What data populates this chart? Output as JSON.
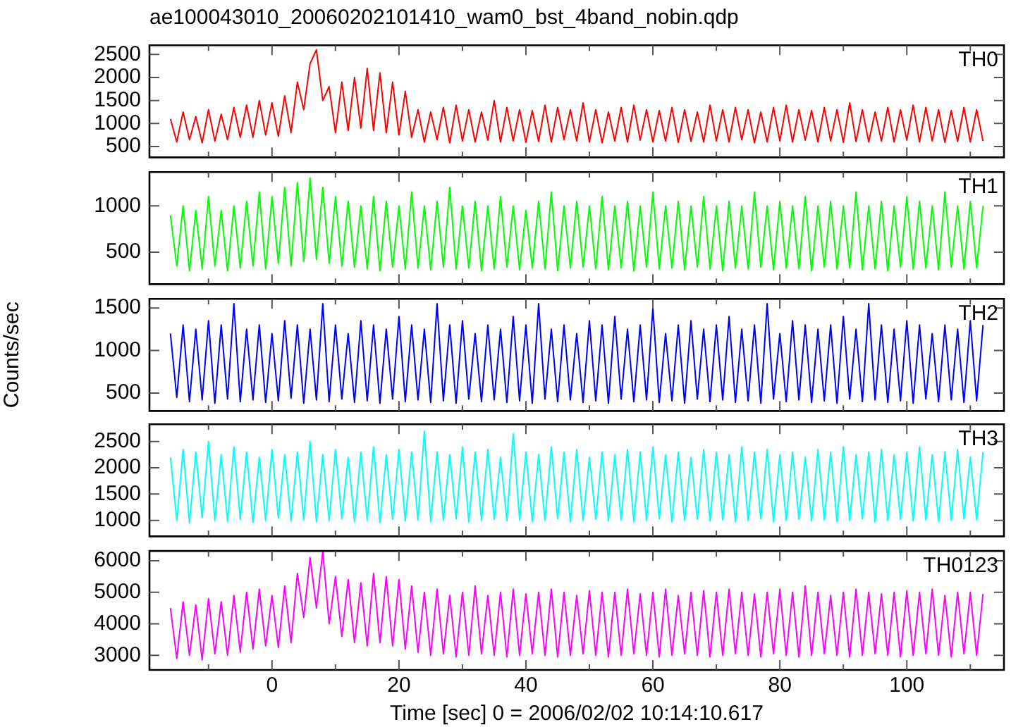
{
  "chart_data": [
    {
      "type": "line",
      "title": "ae100043010_20060202101410_wam0_bst_4band_nobin.qdp",
      "tick_labels": "y",
      "legend": false,
      "grid": false,
      "xlim": [
        -19.3,
        115.3
      ],
      "xticks": [
        {
          "value": -10,
          "label": null
        },
        0,
        {
          "value": 10,
          "label": null
        },
        20,
        {
          "value": 30,
          "label": null
        },
        40,
        {
          "value": 50,
          "label": null
        },
        60,
        {
          "value": 70,
          "label": null
        },
        80,
        {
          "value": 90,
          "label": null
        },
        100,
        {
          "value": 110,
          "label": null
        }
      ],
      "ylim": [
        265,
        2700
      ],
      "yticks": [
        500,
        1000,
        1500,
        2000,
        2500
      ],
      "x": [
        -16,
        -15,
        -14,
        -13,
        -12,
        -11,
        -10,
        -9,
        -8,
        -7,
        -6,
        -5,
        -4,
        -3,
        -2,
        -1,
        0,
        1,
        2,
        3,
        4,
        5,
        6,
        7,
        8,
        9,
        10,
        11,
        12,
        13,
        14,
        15,
        16,
        17,
        18,
        19,
        20,
        21,
        22,
        23,
        24,
        25,
        26,
        27,
        28,
        29,
        30,
        31,
        32,
        33,
        34,
        35,
        36,
        37,
        38,
        39,
        40,
        41,
        42,
        43,
        44,
        45,
        46,
        47,
        48,
        49,
        50,
        51,
        52,
        53,
        54,
        55,
        56,
        57,
        58,
        59,
        60,
        61,
        62,
        63,
        64,
        65,
        66,
        67,
        68,
        69,
        70,
        71,
        72,
        73,
        74,
        75,
        76,
        77,
        78,
        79,
        80,
        81,
        82,
        83,
        84,
        85,
        86,
        87,
        88,
        89,
        90,
        91,
        92,
        93,
        94,
        95,
        96,
        97,
        98,
        99,
        100,
        101,
        102,
        103,
        104,
        105,
        106,
        107,
        108,
        109,
        110,
        111,
        112
      ],
      "series": [
        {
          "name": "TH0",
          "color": "#ff0000",
          "values": [
            1100,
            600,
            1250,
            650,
            1150,
            580,
            1300,
            620,
            1200,
            650,
            1350,
            700,
            1400,
            700,
            1500,
            750,
            1450,
            720,
            1600,
            800,
            1900,
            1300,
            2300,
            2600,
            1500,
            1800,
            800,
            1900,
            850,
            2000,
            900,
            2200,
            850,
            2100,
            800,
            1900,
            750,
            1700,
            700,
            1300,
            600,
            1250,
            650,
            1350,
            580,
            1400,
            620,
            1300,
            600,
            1250,
            640,
            1500,
            600,
            1350,
            620,
            1300,
            590,
            1280,
            610,
            1400,
            600,
            1350,
            650,
            1300,
            620,
            1450,
            600,
            1300,
            580,
            1250,
            620,
            1350,
            600,
            1400,
            640,
            1300,
            600,
            1280,
            620,
            1350,
            590,
            1300,
            610,
            1250,
            600,
            1400,
            620,
            1300,
            600,
            1350,
            650,
            1300,
            580,
            1250,
            600,
            1350,
            620,
            1400,
            600,
            1300,
            640,
            1280,
            600,
            1350,
            620,
            1300,
            590,
            1450,
            610,
            1300,
            600,
            1250,
            620,
            1350,
            600,
            1300,
            640,
            1400,
            600,
            1350,
            620,
            1300,
            590,
            1280,
            610,
            1350,
            600,
            1300,
            620
          ]
        }
      ]
    },
    {
      "type": "line",
      "tick_labels": "y",
      "legend": false,
      "grid": false,
      "xlim": [
        -19.3,
        115.3
      ],
      "xticks": [
        {
          "value": -10,
          "label": null
        },
        0,
        {
          "value": 10,
          "label": null
        },
        20,
        {
          "value": 30,
          "label": null
        },
        40,
        {
          "value": 50,
          "label": null
        },
        60,
        {
          "value": 70,
          "label": null
        },
        80,
        {
          "value": 90,
          "label": null
        },
        100,
        {
          "value": 110,
          "label": null
        }
      ],
      "ylim": [
        155,
        1365
      ],
      "yticks": [
        500,
        1000
      ],
      "x": [
        -16,
        -15,
        -14,
        -13,
        -12,
        -11,
        -10,
        -9,
        -8,
        -7,
        -6,
        -5,
        -4,
        -3,
        -2,
        -1,
        0,
        1,
        2,
        3,
        4,
        5,
        6,
        7,
        8,
        9,
        10,
        11,
        12,
        13,
        14,
        15,
        16,
        17,
        18,
        19,
        20,
        21,
        22,
        23,
        24,
        25,
        26,
        27,
        28,
        29,
        30,
        31,
        32,
        33,
        34,
        35,
        36,
        37,
        38,
        39,
        40,
        41,
        42,
        43,
        44,
        45,
        46,
        47,
        48,
        49,
        50,
        51,
        52,
        53,
        54,
        55,
        56,
        57,
        58,
        59,
        60,
        61,
        62,
        63,
        64,
        65,
        66,
        67,
        68,
        69,
        70,
        71,
        72,
        73,
        74,
        75,
        76,
        77,
        78,
        79,
        80,
        81,
        82,
        83,
        84,
        85,
        86,
        87,
        88,
        89,
        90,
        91,
        92,
        93,
        94,
        95,
        96,
        97,
        98,
        99,
        100,
        101,
        102,
        103,
        104,
        105,
        106,
        107,
        108,
        109,
        110,
        111,
        112
      ],
      "series": [
        {
          "name": "TH1",
          "color": "#00ff00",
          "values": [
            900,
            350,
            1000,
            300,
            950,
            320,
            1100,
            350,
            950,
            300,
            1000,
            330,
            1050,
            350,
            1150,
            320,
            1100,
            380,
            1200,
            350,
            1250,
            400,
            1300,
            420,
            1200,
            380,
            1100,
            350,
            1050,
            340,
            1000,
            320,
            1100,
            300,
            1050,
            340,
            1000,
            320,
            1150,
            330,
            1000,
            310,
            1050,
            340,
            1200,
            320,
            1000,
            330,
            1050,
            300,
            1000,
            320,
            1100,
            340,
            1000,
            310,
            950,
            330,
            1050,
            320,
            1150,
            300,
            1000,
            330,
            1050,
            340,
            1000,
            320,
            1100,
            310,
            1000,
            330,
            1050,
            300,
            1000,
            340,
            1150,
            320,
            1000,
            330,
            1050,
            310,
            1000,
            340,
            1100,
            320,
            1000,
            300,
            1050,
            330,
            1000,
            320,
            1150,
            340,
            1000,
            310,
            1050,
            330,
            1000,
            320,
            1100,
            300,
            1000,
            340,
            1050,
            320,
            1000,
            330,
            1150,
            310,
            1000,
            320,
            1050,
            300,
            1000,
            340,
            1100,
            320,
            1050,
            330,
            1000,
            310,
            1150,
            340,
            1000,
            320,
            1050,
            330,
            1000
          ]
        }
      ]
    },
    {
      "type": "line",
      "ylabel": "Counts/sec",
      "tick_labels": "y",
      "legend": false,
      "grid": false,
      "xlim": [
        -19.3,
        115.3
      ],
      "xticks": [
        {
          "value": -10,
          "label": null
        },
        0,
        {
          "value": 10,
          "label": null
        },
        20,
        {
          "value": 30,
          "label": null
        },
        40,
        {
          "value": 50,
          "label": null
        },
        60,
        {
          "value": 70,
          "label": null
        },
        80,
        {
          "value": 90,
          "label": null
        },
        100,
        {
          "value": 110,
          "label": null
        }
      ],
      "ylim": [
        290,
        1607
      ],
      "yticks": [
        500,
        1000,
        1500
      ],
      "x": [
        -16,
        -15,
        -14,
        -13,
        -12,
        -11,
        -10,
        -9,
        -8,
        -7,
        -6,
        -5,
        -4,
        -3,
        -2,
        -1,
        0,
        1,
        2,
        3,
        4,
        5,
        6,
        7,
        8,
        9,
        10,
        11,
        12,
        13,
        14,
        15,
        16,
        17,
        18,
        19,
        20,
        21,
        22,
        23,
        24,
        25,
        26,
        27,
        28,
        29,
        30,
        31,
        32,
        33,
        34,
        35,
        36,
        37,
        38,
        39,
        40,
        41,
        42,
        43,
        44,
        45,
        46,
        47,
        48,
        49,
        50,
        51,
        52,
        53,
        54,
        55,
        56,
        57,
        58,
        59,
        60,
        61,
        62,
        63,
        64,
        65,
        66,
        67,
        68,
        69,
        70,
        71,
        72,
        73,
        74,
        75,
        76,
        77,
        78,
        79,
        80,
        81,
        82,
        83,
        84,
        85,
        86,
        87,
        88,
        89,
        90,
        91,
        92,
        93,
        94,
        95,
        96,
        97,
        98,
        99,
        100,
        101,
        102,
        103,
        104,
        105,
        106,
        107,
        108,
        109,
        110,
        111,
        112
      ],
      "series": [
        {
          "name": "TH2",
          "color": "#0000ff",
          "values": [
            1200,
            450,
            1300,
            400,
            1250,
            420,
            1350,
            380,
            1300,
            430,
            1550,
            400,
            1250,
            420,
            1300,
            390,
            1200,
            410,
            1350,
            440,
            1300,
            380,
            1250,
            420,
            1550,
            400,
            1300,
            430,
            1200,
            390,
            1350,
            410,
            1300,
            380,
            1250,
            430,
            1400,
            400,
            1300,
            420,
            1250,
            390,
            1550,
            410,
            1300,
            380,
            1350,
            430,
            1200,
            400,
            1300,
            420,
            1250,
            390,
            1400,
            410,
            1300,
            380,
            1550,
            430,
            1250,
            400,
            1300,
            420,
            1200,
            390,
            1350,
            410,
            1300,
            380,
            1400,
            430,
            1250,
            400,
            1300,
            420,
            1500,
            390,
            1200,
            410,
            1300,
            380,
            1350,
            430,
            1250,
            400,
            1300,
            420,
            1400,
            390,
            1250,
            410,
            1300,
            380,
            1550,
            430,
            1200,
            400,
            1350,
            420,
            1300,
            390,
            1250,
            410,
            1300,
            380,
            1400,
            430,
            1250,
            400,
            1550,
            420,
            1300,
            390,
            1250,
            410,
            1350,
            380,
            1300,
            430,
            1200,
            400,
            1300,
            420,
            1250,
            390,
            1350,
            410,
            1300
          ]
        }
      ]
    },
    {
      "type": "line",
      "tick_labels": "y",
      "legend": false,
      "grid": false,
      "xlim": [
        -19.3,
        115.3
      ],
      "xticks": [
        {
          "value": -10,
          "label": null
        },
        0,
        {
          "value": 10,
          "label": null
        },
        20,
        {
          "value": 30,
          "label": null
        },
        40,
        {
          "value": 50,
          "label": null
        },
        60,
        {
          "value": 70,
          "label": null
        },
        80,
        {
          "value": 90,
          "label": null
        },
        100,
        {
          "value": 110,
          "label": null
        }
      ],
      "ylim": [
        695,
        2830
      ],
      "yticks": [
        1000,
        1500,
        2000,
        2500
      ],
      "x": [
        -16,
        -15,
        -14,
        -13,
        -12,
        -11,
        -10,
        -9,
        -8,
        -7,
        -6,
        -5,
        -4,
        -3,
        -2,
        -1,
        0,
        1,
        2,
        3,
        4,
        5,
        6,
        7,
        8,
        9,
        10,
        11,
        12,
        13,
        14,
        15,
        16,
        17,
        18,
        19,
        20,
        21,
        22,
        23,
        24,
        25,
        26,
        27,
        28,
        29,
        30,
        31,
        32,
        33,
        34,
        35,
        36,
        37,
        38,
        39,
        40,
        41,
        42,
        43,
        44,
        45,
        46,
        47,
        48,
        49,
        50,
        51,
        52,
        53,
        54,
        55,
        56,
        57,
        58,
        59,
        60,
        61,
        62,
        63,
        64,
        65,
        66,
        67,
        68,
        69,
        70,
        71,
        72,
        73,
        74,
        75,
        76,
        77,
        78,
        79,
        80,
        81,
        82,
        83,
        84,
        85,
        86,
        87,
        88,
        89,
        90,
        91,
        92,
        93,
        94,
        95,
        96,
        97,
        98,
        99,
        100,
        101,
        102,
        103,
        104,
        105,
        106,
        107,
        108,
        109,
        110,
        111,
        112
      ],
      "series": [
        {
          "name": "TH3",
          "color": "#00ffff",
          "values": [
            2200,
            1000,
            2350,
            950,
            2300,
            1050,
            2500,
            1000,
            2250,
            980,
            2400,
            1020,
            2300,
            960,
            2200,
            1000,
            2350,
            1040,
            2250,
            990,
            2300,
            1010,
            2500,
            970,
            2250,
            1000,
            2350,
            1030,
            2200,
            980,
            2300,
            1000,
            2400,
            960,
            2250,
            1020,
            2350,
            990,
            2300,
            1010,
            2700,
            980,
            2300,
            1000,
            2250,
            1030,
            2400,
            970,
            2300,
            1000,
            2350,
            1020,
            2200,
            990,
            2650,
            1010,
            2300,
            980,
            2250,
            1000,
            2400,
            1030,
            2300,
            970,
            2350,
            1000,
            2200,
            1020,
            2300,
            990,
            2250,
            1010,
            2350,
            980,
            2300,
            1000,
            2400,
            1030,
            2250,
            970,
            2300,
            1000,
            2200,
            1020,
            2350,
            990,
            2300,
            1010,
            2250,
            980,
            2400,
            1000,
            2300,
            1030,
            2350,
            970,
            2250,
            1000,
            2300,
            1020,
            2200,
            990,
            2350,
            1010,
            2300,
            980,
            2400,
            1000,
            2250,
            1030,
            2300,
            970,
            2350,
            1000,
            2250,
            1020,
            2300,
            990,
            2400,
            1010,
            2250,
            980,
            2300,
            1000,
            2350,
            1030,
            2200,
            1010,
            2300
          ]
        }
      ]
    },
    {
      "type": "line",
      "xlabel": "Time [sec] 0 = 2006/02/02 10:14:10.617",
      "legend": false,
      "grid": false,
      "xlim": [
        -19.3,
        115.3
      ],
      "xticks": [
        {
          "value": -10,
          "label": null
        },
        0,
        {
          "value": 10,
          "label": null
        },
        20,
        {
          "value": 30,
          "label": null
        },
        40,
        {
          "value": 50,
          "label": null
        },
        60,
        {
          "value": 70,
          "label": null
        },
        80,
        {
          "value": 90,
          "label": null
        },
        100,
        {
          "value": 110,
          "label": null
        }
      ],
      "ylim": [
        2535,
        6310
      ],
      "yticks": [
        3000,
        4000,
        5000,
        6000
      ],
      "x": [
        -16,
        -15,
        -14,
        -13,
        -12,
        -11,
        -10,
        -9,
        -8,
        -7,
        -6,
        -5,
        -4,
        -3,
        -2,
        -1,
        0,
        1,
        2,
        3,
        4,
        5,
        6,
        7,
        8,
        9,
        10,
        11,
        12,
        13,
        14,
        15,
        16,
        17,
        18,
        19,
        20,
        21,
        22,
        23,
        24,
        25,
        26,
        27,
        28,
        29,
        30,
        31,
        32,
        33,
        34,
        35,
        36,
        37,
        38,
        39,
        40,
        41,
        42,
        43,
        44,
        45,
        46,
        47,
        48,
        49,
        50,
        51,
        52,
        53,
        54,
        55,
        56,
        57,
        58,
        59,
        60,
        61,
        62,
        63,
        64,
        65,
        66,
        67,
        68,
        69,
        70,
        71,
        72,
        73,
        74,
        75,
        76,
        77,
        78,
        79,
        80,
        81,
        82,
        83,
        84,
        85,
        86,
        87,
        88,
        89,
        90,
        91,
        92,
        93,
        94,
        95,
        96,
        97,
        98,
        99,
        100,
        101,
        102,
        103,
        104,
        105,
        106,
        107,
        108,
        109,
        110,
        111,
        112
      ],
      "series": [
        {
          "name": "TH0123",
          "color": "#ff00ff",
          "values": [
            4500,
            2900,
            4700,
            3000,
            4600,
            2850,
            4800,
            3050,
            4700,
            3000,
            4900,
            3100,
            5000,
            3200,
            5100,
            3300,
            4900,
            3250,
            5200,
            3400,
            5600,
            4200,
            6100,
            4500,
            6300,
            4000,
            5500,
            3600,
            5400,
            3400,
            5300,
            3300,
            5600,
            3400,
            5500,
            3300,
            5400,
            3200,
            5200,
            3100,
            5000,
            3000,
            5100,
            3050,
            4900,
            2950,
            5000,
            3000,
            5200,
            3050,
            4900,
            3000,
            5000,
            2950,
            5100,
            3000,
            4950,
            3050,
            5000,
            3000,
            5100,
            2950,
            5000,
            3000,
            4900,
            3050,
            5050,
            3000,
            5000,
            2950,
            5000,
            3000,
            5100,
            3050,
            4950,
            3000,
            5000,
            2950,
            5100,
            3000,
            4900,
            3050,
            5000,
            3000,
            5050,
            2950,
            5000,
            3000,
            5100,
            3050,
            5000,
            3000,
            4950,
            2950,
            5000,
            3050,
            5100,
            3000,
            5000,
            2950,
            5200,
            3000,
            5000,
            3050,
            4900,
            3000,
            5000,
            2950,
            5100,
            3000,
            5000,
            3050,
            4950,
            3000,
            5000,
            2950,
            5050,
            3000,
            5000,
            3050,
            5100,
            3000,
            4900,
            2950,
            5000,
            3050,
            5000,
            3000,
            4950
          ]
        }
      ]
    }
  ]
}
